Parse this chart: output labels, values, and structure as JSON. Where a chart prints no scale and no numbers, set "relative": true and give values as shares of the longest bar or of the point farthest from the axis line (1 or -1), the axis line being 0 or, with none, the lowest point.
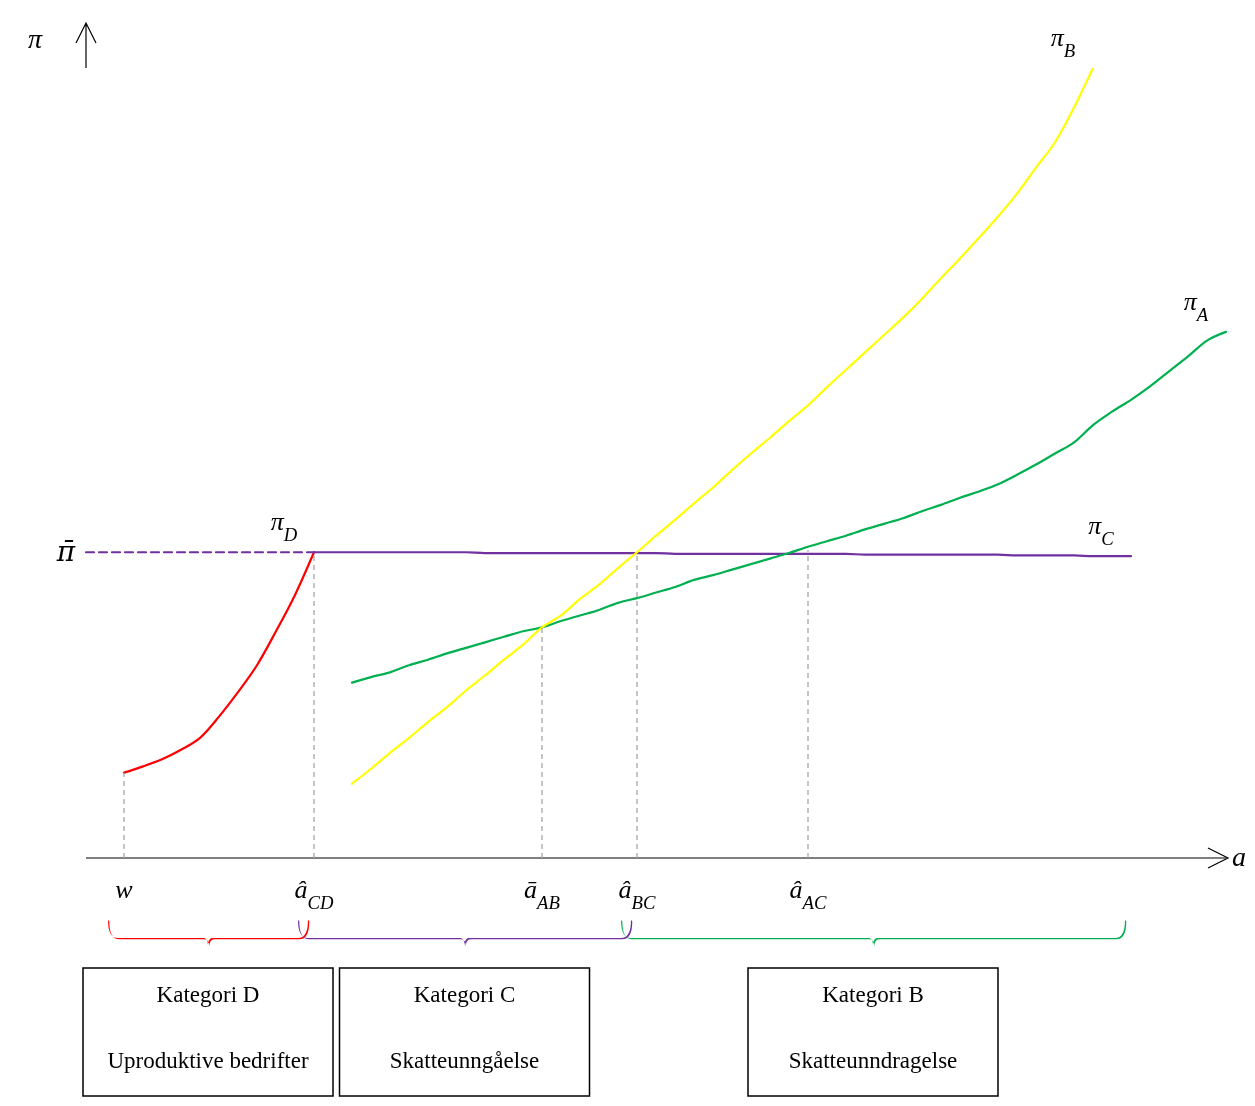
{
  "chart_data": {
    "type": "line",
    "relative": true,
    "xlabel": "a",
    "ylabel": "π",
    "categories": [
      null,
      null,
      "w",
      null,
      null,
      null,
      null,
      null,
      null,
      null,
      null,
      null,
      "â$_{CD}$",
      null,
      null,
      null,
      null,
      null,
      null,
      null,
      null,
      null,
      null,
      null,
      "ā$_{AB}$",
      null,
      null,
      null,
      null,
      "â$_{BC}$",
      null,
      null,
      null,
      null,
      null,
      null,
      null,
      null,
      "â$_{AC}$",
      null,
      null,
      null,
      null,
      null,
      null,
      null,
      null,
      null,
      null,
      null,
      null,
      null,
      null,
      null,
      null,
      null,
      null,
      null,
      null,
      null,
      null
    ],
    "tick_labels": "x",
    "grid": false,
    "legend": false,
    "marker": "none",
    "series": [
      {
        "name": "π$_{D}$",
        "color": "#ff0000",
        "values": [
          null,
          null,
          0.108,
          0.116,
          0.125,
          0.137,
          0.152,
          0.179,
          0.21,
          0.244,
          0.287,
          0.333,
          0.387,
          null,
          null,
          null,
          null,
          null,
          null,
          null,
          null,
          null,
          null,
          null,
          null,
          null,
          null,
          null,
          null,
          null,
          null,
          null,
          null,
          null,
          null,
          null,
          null,
          null,
          null,
          null,
          null,
          null,
          null,
          null,
          null,
          null,
          null,
          null,
          null,
          null,
          null,
          null,
          null,
          null,
          null,
          null,
          null,
          null,
          null,
          null,
          null
        ]
      },
      {
        "name": "π$_{C}$",
        "color": "#7030a0",
        "values": [
          null,
          null,
          null,
          null,
          null,
          null,
          null,
          null,
          null,
          null,
          null,
          null,
          0.387,
          0.387,
          0.387,
          0.387,
          0.387,
          0.387,
          0.387,
          0.387,
          0.387,
          0.386,
          0.386,
          0.386,
          0.386,
          0.386,
          0.386,
          0.386,
          0.386,
          0.386,
          0.386,
          0.385,
          0.385,
          0.385,
          0.385,
          0.385,
          0.385,
          0.385,
          0.385,
          0.385,
          0.385,
          0.384,
          0.384,
          0.384,
          0.384,
          0.384,
          0.384,
          0.384,
          0.384,
          0.383,
          0.383,
          0.383,
          0.383,
          0.382,
          0.382,
          0.382,
          null,
          null,
          null,
          null,
          null
        ]
      },
      {
        "color": "#7030a0",
        "line_style": "dashed",
        "values": [
          0.387,
          0.387,
          0.387,
          0.387,
          0.387,
          0.387,
          0.387,
          0.387,
          0.387,
          0.387,
          0.387,
          0.387,
          0.387,
          null,
          null,
          null,
          null,
          null,
          null,
          null,
          null,
          null,
          null,
          null,
          null,
          null,
          null,
          null,
          null,
          null,
          null,
          null,
          null,
          null,
          null,
          null,
          null,
          null,
          null,
          null,
          null,
          null,
          null,
          null,
          null,
          null,
          null,
          null,
          null,
          null,
          null,
          null,
          null,
          null,
          null,
          null,
          null,
          null,
          null,
          null,
          null
        ]
      },
      {
        "name": "π$_{A}$",
        "color": "#00b050",
        "values": [
          null,
          null,
          null,
          null,
          null,
          null,
          null,
          null,
          null,
          null,
          null,
          null,
          null,
          null,
          0.222,
          0.229,
          0.235,
          0.244,
          0.251,
          0.259,
          0.266,
          0.273,
          0.28,
          0.287,
          0.292,
          0.3,
          0.307,
          0.314,
          0.323,
          0.329,
          0.336,
          0.343,
          0.352,
          0.358,
          0.365,
          0.372,
          0.379,
          0.386,
          0.394,
          0.401,
          0.408,
          0.416,
          0.423,
          0.43,
          0.439,
          0.447,
          0.456,
          0.464,
          0.473,
          0.485,
          0.498,
          0.512,
          0.526,
          0.548,
          0.565,
          0.58,
          0.597,
          0.616,
          0.635,
          0.655,
          0.666
        ]
      },
      {
        "name": "π$_{B}$",
        "color": "#ffff00",
        "values": [
          null,
          null,
          null,
          null,
          null,
          null,
          null,
          null,
          null,
          null,
          null,
          null,
          null,
          null,
          0.094,
          0.113,
          0.133,
          0.152,
          0.172,
          0.191,
          0.212,
          0.231,
          0.251,
          0.27,
          0.292,
          0.307,
          0.328,
          0.346,
          0.367,
          0.387,
          0.408,
          0.428,
          0.449,
          0.469,
          0.491,
          0.512,
          0.532,
          0.553,
          0.573,
          0.596,
          0.618,
          0.64,
          0.662,
          0.684,
          0.708,
          0.734,
          0.759,
          0.785,
          0.812,
          0.841,
          0.874,
          0.906,
          0.95,
          1.0,
          null,
          null,
          null,
          null,
          null,
          null,
          null
        ]
      }
    ],
    "annotations": [
      "Kategori D",
      "Uproduktive bedrifter",
      "Kategori C",
      "Skatteunngåelse",
      "Kategori B",
      "Skatteunndragelse",
      "π̄"
    ]
  }
}
